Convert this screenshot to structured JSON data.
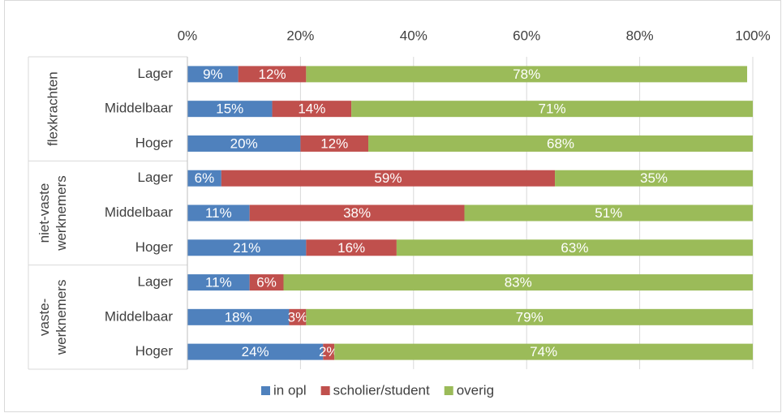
{
  "chart_data": {
    "type": "stacked-bar-horizontal",
    "groups": [
      {
        "name": [
          "flexkrachten"
        ],
        "categories": [
          "Lager",
          "Middelbaar",
          "Hoger"
        ]
      },
      {
        "name": [
          "niet-vaste",
          "werknemers"
        ],
        "categories": [
          "Lager",
          "Middelbaar",
          "Hoger"
        ]
      },
      {
        "name": [
          "vaste-",
          "werknemers"
        ],
        "categories": [
          "Lager",
          "Middelbaar",
          "Hoger"
        ]
      }
    ],
    "series": [
      {
        "name": "in opl",
        "color": "#4f81bd",
        "values": [
          9,
          15,
          20,
          6,
          11,
          21,
          11,
          18,
          24
        ],
        "value_labels": [
          "9%",
          "15%",
          "20%",
          "6%",
          "11%",
          "21%",
          "11%",
          "18%",
          "24%"
        ]
      },
      {
        "name": "scholier/student",
        "color": "#c0504d",
        "values": [
          12,
          14,
          12,
          59,
          38,
          16,
          6,
          3,
          2
        ],
        "value_labels": [
          "12%",
          "14%",
          "12%",
          "59%",
          "38%",
          "16%",
          "6%",
          "3%",
          "2%"
        ]
      },
      {
        "name": "overig",
        "color": "#9bbb59",
        "values": [
          78,
          71,
          68,
          35,
          51,
          63,
          83,
          79,
          74
        ],
        "value_labels": [
          "78%",
          "71%",
          "68%",
          "35%",
          "51%",
          "63%",
          "83%",
          "79%",
          "74%"
        ]
      }
    ],
    "xlim": [
      0,
      100
    ],
    "xticks": [
      {
        "value": 0,
        "label": "0%"
      },
      {
        "value": 20,
        "label": "20%"
      },
      {
        "value": 40,
        "label": "40%"
      },
      {
        "value": 60,
        "label": "60%"
      },
      {
        "value": 80,
        "label": "80%"
      },
      {
        "value": 100,
        "label": "100%"
      }
    ],
    "grid": true,
    "legend": "bottom"
  }
}
